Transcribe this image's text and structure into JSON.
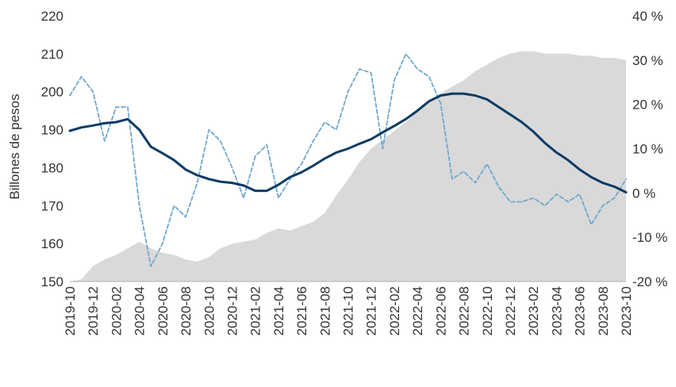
{
  "chart_data": {
    "type": "line",
    "ylabel": "Billones de pesos",
    "y_left": {
      "min": 150,
      "max": 220,
      "ticks": [
        "150",
        "160",
        "170",
        "180",
        "190",
        "200",
        "210",
        "220"
      ]
    },
    "y_right": {
      "min": -20,
      "max": 40,
      "ticks": [
        "-20 %",
        "-10 %",
        "0 %",
        "10 %",
        "20 %",
        "30 %",
        "40 %"
      ]
    },
    "x_range": [
      "2019-10",
      "2023-10"
    ],
    "x_ticks": [
      "2019-10",
      "2019-12",
      "2020-02",
      "2020-04",
      "2020-06",
      "2020-08",
      "2020-10",
      "2020-12",
      "2021-02",
      "2021-04",
      "2021-06",
      "2021-08",
      "2021-10",
      "2021-12",
      "2022-02",
      "2022-04",
      "2022-06",
      "2022-08",
      "2022-10",
      "2022-12",
      "2023-02",
      "2023-04",
      "2023-06",
      "2023-08",
      "2023-10"
    ],
    "colors": {
      "solid": "#0d3b66",
      "dashed": "#6fa8cf",
      "area": "#d9d9d9"
    },
    "series": [
      {
        "style": "area",
        "axis": "right",
        "x": [
          "2019-10",
          "2019-11",
          "2019-12",
          "2020-01",
          "2020-02",
          "2020-03",
          "2020-04",
          "2020-05",
          "2020-06",
          "2020-07",
          "2020-08",
          "2020-09",
          "2020-10",
          "2020-11",
          "2020-12",
          "2021-01",
          "2021-02",
          "2021-03",
          "2021-04",
          "2021-05",
          "2021-06",
          "2021-07",
          "2021-08",
          "2021-09",
          "2021-10",
          "2021-11",
          "2021-12",
          "2022-01",
          "2022-02",
          "2022-03",
          "2022-04",
          "2022-05",
          "2022-06",
          "2022-07",
          "2022-08",
          "2022-09",
          "2022-10",
          "2022-11",
          "2022-12",
          "2023-01",
          "2023-02",
          "2023-03",
          "2023-04",
          "2023-05",
          "2023-06",
          "2023-07",
          "2023-08",
          "2023-09",
          "2023-10"
        ],
        "values": [
          -20,
          -19.5,
          -16.5,
          -15,
          -14,
          -12.5,
          -11,
          -12.5,
          -13.5,
          -14,
          -15,
          -15.5,
          -14.5,
          -12.5,
          -11.5,
          -11,
          -10.5,
          -9,
          -8,
          -8.5,
          -7.5,
          -6.5,
          -4.5,
          -0.5,
          3,
          7,
          10,
          12,
          14,
          16,
          18.5,
          20.5,
          22.5,
          24,
          25.5,
          27.5,
          29,
          30.5,
          31.5,
          32,
          32,
          31.5,
          31.5,
          31.5,
          31,
          31,
          30.5,
          30.5,
          30
        ]
      },
      {
        "style": "dashed",
        "axis": "left",
        "x": [
          "2019-10",
          "2019-11",
          "2019-12",
          "2020-01",
          "2020-02",
          "2020-03",
          "2020-04",
          "2020-05",
          "2020-06",
          "2020-07",
          "2020-08",
          "2020-09",
          "2020-10",
          "2020-11",
          "2020-12",
          "2021-01",
          "2021-02",
          "2021-03",
          "2021-04",
          "2021-05",
          "2021-06",
          "2021-07",
          "2021-08",
          "2021-09",
          "2021-10",
          "2021-11",
          "2021-12",
          "2022-01",
          "2022-02",
          "2022-03",
          "2022-04",
          "2022-05",
          "2022-06",
          "2022-07",
          "2022-08",
          "2022-09",
          "2022-10",
          "2022-11",
          "2022-12",
          "2023-01",
          "2023-02",
          "2023-03",
          "2023-04",
          "2023-05",
          "2023-06",
          "2023-07",
          "2023-08",
          "2023-09",
          "2023-10"
        ],
        "values": [
          199,
          204,
          200,
          187,
          196,
          196,
          170,
          154,
          160,
          170,
          167,
          176,
          190,
          187,
          180,
          172,
          183,
          186,
          172,
          177,
          181,
          187,
          192,
          190,
          200,
          206,
          205,
          185,
          203,
          210,
          206,
          204,
          197,
          177,
          179,
          176,
          181,
          175,
          171,
          171,
          172,
          170,
          173,
          171,
          173,
          165,
          170,
          172,
          177
        ]
      },
      {
        "style": "solid",
        "axis": "left",
        "x": [
          "2019-10",
          "2019-11",
          "2019-12",
          "2020-01",
          "2020-02",
          "2020-03",
          "2020-04",
          "2020-05",
          "2020-06",
          "2020-07",
          "2020-08",
          "2020-09",
          "2020-10",
          "2020-11",
          "2020-12",
          "2021-01",
          "2021-02",
          "2021-03",
          "2021-04",
          "2021-05",
          "2021-06",
          "2021-07",
          "2021-08",
          "2021-09",
          "2021-10",
          "2021-11",
          "2021-12",
          "2022-01",
          "2022-02",
          "2022-03",
          "2022-04",
          "2022-05",
          "2022-06",
          "2022-07",
          "2022-08",
          "2022-09",
          "2022-10",
          "2022-11",
          "2022-12",
          "2023-01",
          "2023-02",
          "2023-03",
          "2023-04",
          "2023-05",
          "2023-06",
          "2023-07",
          "2023-08",
          "2023-09",
          "2023-10"
        ],
        "values": [
          189.7,
          190.6,
          191.1,
          191.7,
          192,
          192.8,
          190,
          185.5,
          183.8,
          182,
          179.5,
          178,
          177,
          176.3,
          176,
          175.3,
          173.9,
          173.9,
          175.5,
          177.5,
          178.8,
          180.5,
          182.4,
          184,
          185,
          186.3,
          187.5,
          189.3,
          191,
          192.8,
          195,
          197.5,
          199,
          199.5,
          199.5,
          199,
          198,
          196,
          194,
          192,
          189.5,
          186.5,
          184,
          182,
          179.5,
          177.5,
          176,
          175,
          173.5
        ]
      }
    ]
  }
}
